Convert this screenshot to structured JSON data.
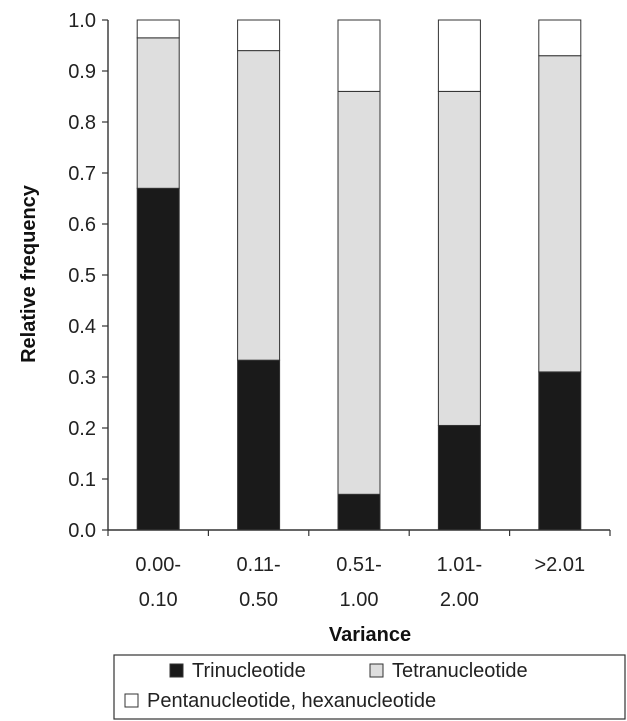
{
  "chart_data": {
    "type": "bar",
    "stacked": true,
    "categories": [
      [
        "0.00-",
        "0.10"
      ],
      [
        "0.11-",
        "0.50"
      ],
      [
        "0.51-",
        "1.00"
      ],
      [
        "1.01-",
        "2.00"
      ],
      [
        ">2.01"
      ]
    ],
    "series": [
      {
        "name": "Trinucleotide",
        "values": [
          0.67,
          0.333,
          0.07,
          0.205,
          0.31
        ],
        "color": "#1a1a1a"
      },
      {
        "name": "Tetranucleotide",
        "values": [
          0.295,
          0.607,
          0.79,
          0.655,
          0.62
        ],
        "color": "#dedede"
      },
      {
        "name": "Pentanucleotide, hexanucleotide",
        "values": [
          0.035,
          0.06,
          0.14,
          0.14,
          0.07
        ],
        "color": "#ffffff"
      }
    ],
    "xlabel": "Variance",
    "ylabel": "Relative frequency",
    "ylim": [
      0,
      1.0
    ],
    "yticks": [
      "0.0",
      "0.1",
      "0.2",
      "0.3",
      "0.4",
      "0.5",
      "0.6",
      "0.7",
      "0.8",
      "0.9",
      "1.0"
    ],
    "grid": false,
    "legend_position": "bottom"
  }
}
